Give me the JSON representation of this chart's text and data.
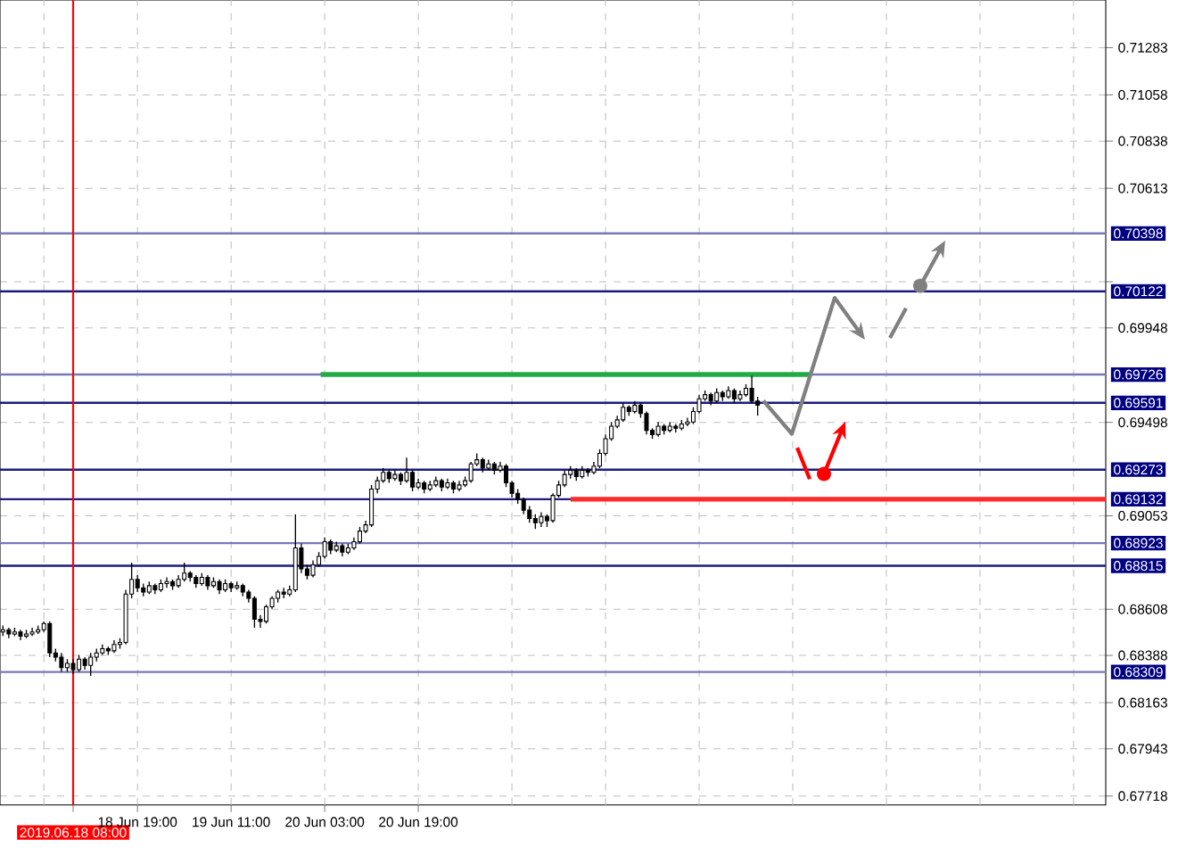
{
  "chart_data": {
    "type": "candlestick",
    "categories": [
      null,
      null,
      null,
      null,
      null,
      null,
      null,
      null,
      null,
      null,
      null,
      null,
      "2019.06.18 08:00",
      null,
      null,
      null,
      null,
      null,
      null,
      null,
      null,
      null,
      null,
      "18 Jun 19:00",
      null,
      null,
      null,
      null,
      null,
      null,
      null,
      null,
      null,
      null,
      null,
      null,
      null,
      null,
      null,
      "19 Jun 11:00",
      null,
      null,
      null,
      null,
      null,
      null,
      null,
      null,
      null,
      null,
      null,
      null,
      null,
      null,
      null,
      "20 Jun 03:00",
      null,
      null,
      null,
      null,
      null,
      null,
      null,
      null,
      null,
      null,
      null,
      null,
      null,
      null,
      null,
      "20 Jun 19:00",
      null,
      null,
      null,
      null,
      null,
      null,
      null,
      null,
      null,
      null,
      null,
      null,
      null,
      null,
      null,
      null,
      null,
      null,
      null,
      null,
      null,
      null,
      null,
      null,
      null,
      null,
      null,
      null,
      null,
      null,
      null,
      null,
      null,
      null,
      null,
      null,
      null,
      null,
      null,
      null,
      null,
      null,
      null,
      null,
      null,
      null,
      null,
      null,
      null,
      null,
      null,
      null,
      null,
      null,
      null,
      null,
      null,
      null,
      null,
      null,
      null,
      null,
      null,
      null,
      null,
      null,
      null,
      null,
      null,
      null,
      null,
      null,
      null,
      null,
      null,
      null,
      null,
      null,
      null,
      null,
      null,
      null,
      null,
      null,
      null,
      null,
      null,
      null,
      null,
      null,
      null,
      null,
      null,
      null,
      null,
      null,
      null,
      null,
      null,
      null,
      null,
      null,
      null,
      null,
      null,
      null,
      null,
      null,
      null,
      null,
      null,
      null,
      null,
      null,
      null,
      null,
      null
    ],
    "ohlc": [
      [
        0.685,
        0.6853,
        0.6848,
        0.6851
      ],
      [
        0.6851,
        0.6852,
        0.6847,
        0.6849
      ],
      [
        0.6849,
        0.6852,
        0.6848,
        0.685
      ],
      [
        0.685,
        0.6851,
        0.6846,
        0.6848
      ],
      [
        0.6848,
        0.6851,
        0.6847,
        0.6849
      ],
      [
        0.6849,
        0.6852,
        0.6848,
        0.685
      ],
      [
        0.685,
        0.6853,
        0.6849,
        0.6851
      ],
      [
        0.6851,
        0.6855,
        0.685,
        0.6854
      ],
      [
        0.6854,
        0.6855,
        0.6838,
        0.684
      ],
      [
        0.684,
        0.6842,
        0.6836,
        0.6838
      ],
      [
        0.6838,
        0.684,
        0.6831,
        0.6833
      ],
      [
        0.6833,
        0.6837,
        0.6831,
        0.6835
      ],
      [
        0.6835,
        0.6837,
        0.683,
        0.6832
      ],
      [
        0.6832,
        0.6839,
        0.6831,
        0.6837
      ],
      [
        0.6837,
        0.6838,
        0.6832,
        0.6834
      ],
      [
        0.6834,
        0.684,
        0.6829,
        0.6838
      ],
      [
        0.6838,
        0.6842,
        0.6836,
        0.684
      ],
      [
        0.684,
        0.6844,
        0.6839,
        0.6842
      ],
      [
        0.6842,
        0.6843,
        0.6839,
        0.6841
      ],
      [
        0.6841,
        0.6846,
        0.684,
        0.6844
      ],
      [
        0.6844,
        0.6847,
        0.6842,
        0.6845
      ],
      [
        0.6845,
        0.687,
        0.6844,
        0.6868
      ],
      [
        0.6868,
        0.6883,
        0.6866,
        0.6875
      ],
      [
        0.6875,
        0.6877,
        0.6869,
        0.6871
      ],
      [
        0.6871,
        0.6873,
        0.6867,
        0.6869
      ],
      [
        0.6869,
        0.6874,
        0.6868,
        0.6872
      ],
      [
        0.6872,
        0.6873,
        0.6868,
        0.687
      ],
      [
        0.687,
        0.6875,
        0.6869,
        0.6873
      ],
      [
        0.6873,
        0.6876,
        0.6871,
        0.6874
      ],
      [
        0.6874,
        0.6875,
        0.687,
        0.6872
      ],
      [
        0.6872,
        0.6877,
        0.6871,
        0.6875
      ],
      [
        0.6875,
        0.6883,
        0.6874,
        0.6878
      ],
      [
        0.6878,
        0.6879,
        0.6874,
        0.6876
      ],
      [
        0.6876,
        0.6877,
        0.6871,
        0.6873
      ],
      [
        0.6873,
        0.6878,
        0.6872,
        0.6876
      ],
      [
        0.6876,
        0.6877,
        0.687,
        0.6872
      ],
      [
        0.6872,
        0.6876,
        0.6871,
        0.6874
      ],
      [
        0.6874,
        0.6875,
        0.6868,
        0.687
      ],
      [
        0.687,
        0.6875,
        0.6869,
        0.6873
      ],
      [
        0.6873,
        0.6874,
        0.6869,
        0.6871
      ],
      [
        0.6871,
        0.6874,
        0.687,
        0.6872
      ],
      [
        0.6872,
        0.6873,
        0.6867,
        0.6869
      ],
      [
        0.6869,
        0.687,
        0.6864,
        0.6866
      ],
      [
        0.6866,
        0.6867,
        0.6852,
        0.6856
      ],
      [
        0.6856,
        0.6858,
        0.6852,
        0.6855
      ],
      [
        0.6855,
        0.6863,
        0.6854,
        0.6862
      ],
      [
        0.6862,
        0.6867,
        0.6861,
        0.6866
      ],
      [
        0.6866,
        0.687,
        0.6864,
        0.6869
      ],
      [
        0.6869,
        0.6871,
        0.6866,
        0.6868
      ],
      [
        0.6868,
        0.6872,
        0.6867,
        0.687
      ],
      [
        0.687,
        0.6906,
        0.6869,
        0.689
      ],
      [
        0.689,
        0.6892,
        0.6878,
        0.688
      ],
      [
        0.688,
        0.6882,
        0.6875,
        0.6877
      ],
      [
        0.6877,
        0.6884,
        0.6876,
        0.6882
      ],
      [
        0.6882,
        0.6888,
        0.6881,
        0.6886
      ],
      [
        0.6886,
        0.6895,
        0.6885,
        0.6893
      ],
      [
        0.6893,
        0.6894,
        0.6887,
        0.6889
      ],
      [
        0.6889,
        0.6893,
        0.6888,
        0.6891
      ],
      [
        0.6891,
        0.6892,
        0.6886,
        0.6888
      ],
      [
        0.6888,
        0.6892,
        0.6887,
        0.689
      ],
      [
        0.689,
        0.6895,
        0.6889,
        0.6893
      ],
      [
        0.6893,
        0.69,
        0.6892,
        0.6898
      ],
      [
        0.6898,
        0.6903,
        0.6897,
        0.6901
      ],
      [
        0.6901,
        0.692,
        0.69,
        0.6918
      ],
      [
        0.6918,
        0.6924,
        0.6916,
        0.6922
      ],
      [
        0.6922,
        0.6928,
        0.6921,
        0.6926
      ],
      [
        0.6926,
        0.6927,
        0.6921,
        0.6923
      ],
      [
        0.6923,
        0.6927,
        0.6922,
        0.6925
      ],
      [
        0.6925,
        0.6926,
        0.692,
        0.6922
      ],
      [
        0.6922,
        0.6933,
        0.6921,
        0.6926
      ],
      [
        0.6926,
        0.6927,
        0.6917,
        0.6919
      ],
      [
        0.6919,
        0.6923,
        0.6918,
        0.6921
      ],
      [
        0.6921,
        0.6922,
        0.6916,
        0.6918
      ],
      [
        0.6918,
        0.6922,
        0.6917,
        0.692
      ],
      [
        0.692,
        0.6924,
        0.6919,
        0.6922
      ],
      [
        0.6922,
        0.6923,
        0.6917,
        0.6919
      ],
      [
        0.6919,
        0.6923,
        0.6918,
        0.6921
      ],
      [
        0.6921,
        0.6922,
        0.6916,
        0.6918
      ],
      [
        0.6918,
        0.6922,
        0.6917,
        0.692
      ],
      [
        0.692,
        0.6924,
        0.6919,
        0.6922
      ],
      [
        0.6922,
        0.6931,
        0.6921,
        0.693
      ],
      [
        0.693,
        0.6935,
        0.6929,
        0.6932
      ],
      [
        0.6932,
        0.6933,
        0.6926,
        0.6928
      ],
      [
        0.6928,
        0.6932,
        0.6927,
        0.693
      ],
      [
        0.693,
        0.6931,
        0.6925,
        0.6927
      ],
      [
        0.6927,
        0.6931,
        0.6926,
        0.6929
      ],
      [
        0.6929,
        0.693,
        0.6919,
        0.6921
      ],
      [
        0.6921,
        0.6922,
        0.6914,
        0.6916
      ],
      [
        0.6916,
        0.6918,
        0.6911,
        0.6913
      ],
      [
        0.6913,
        0.6914,
        0.6906,
        0.6908
      ],
      [
        0.6908,
        0.691,
        0.6902,
        0.6904
      ],
      [
        0.6904,
        0.6906,
        0.6899,
        0.6902
      ],
      [
        0.6902,
        0.6907,
        0.69,
        0.6905
      ],
      [
        0.6905,
        0.6906,
        0.69,
        0.6903
      ],
      [
        0.6903,
        0.6916,
        0.6902,
        0.6915
      ],
      [
        0.6915,
        0.6922,
        0.6914,
        0.692
      ],
      [
        0.692,
        0.6927,
        0.6919,
        0.6925
      ],
      [
        0.6925,
        0.6929,
        0.6923,
        0.6927
      ],
      [
        0.6927,
        0.6928,
        0.6922,
        0.6924
      ],
      [
        0.6924,
        0.6929,
        0.6923,
        0.6927
      ],
      [
        0.6927,
        0.6928,
        0.6924,
        0.6926
      ],
      [
        0.6926,
        0.6931,
        0.6925,
        0.6929
      ],
      [
        0.6929,
        0.6937,
        0.6928,
        0.6935
      ],
      [
        0.6935,
        0.6944,
        0.6934,
        0.6942
      ],
      [
        0.6942,
        0.695,
        0.6941,
        0.6948
      ],
      [
        0.6948,
        0.6953,
        0.6947,
        0.6951
      ],
      [
        0.6951,
        0.6959,
        0.695,
        0.6957
      ],
      [
        0.6957,
        0.6958,
        0.6953,
        0.6955
      ],
      [
        0.6955,
        0.696,
        0.6954,
        0.6958
      ],
      [
        0.6958,
        0.6959,
        0.6952,
        0.6954
      ],
      [
        0.6954,
        0.6955,
        0.6944,
        0.6946
      ],
      [
        0.6946,
        0.6947,
        0.6942,
        0.6944
      ],
      [
        0.6944,
        0.695,
        0.6943,
        0.6948
      ],
      [
        0.6948,
        0.6949,
        0.6944,
        0.6946
      ],
      [
        0.6946,
        0.695,
        0.6945,
        0.6948
      ],
      [
        0.6948,
        0.6949,
        0.6945,
        0.6947
      ],
      [
        0.6947,
        0.6951,
        0.6946,
        0.6949
      ],
      [
        0.6949,
        0.6952,
        0.6948,
        0.695
      ],
      [
        0.695,
        0.6957,
        0.6949,
        0.6955
      ],
      [
        0.6955,
        0.6963,
        0.6954,
        0.6961
      ],
      [
        0.6961,
        0.6965,
        0.696,
        0.6963
      ],
      [
        0.6963,
        0.6964,
        0.6958,
        0.696
      ],
      [
        0.696,
        0.6966,
        0.6959,
        0.6964
      ],
      [
        0.6964,
        0.6965,
        0.696,
        0.6962
      ],
      [
        0.6962,
        0.6967,
        0.6961,
        0.6965
      ],
      [
        0.6965,
        0.6966,
        0.6959,
        0.6961
      ],
      [
        0.6961,
        0.6965,
        0.696,
        0.6963
      ],
      [
        0.6963,
        0.6968,
        0.6962,
        0.6966
      ],
      [
        0.6966,
        0.6972,
        0.6959,
        0.696
      ],
      [
        0.696,
        0.6962,
        0.6953,
        0.6958
      ],
      null,
      null,
      null,
      null,
      null,
      null,
      null,
      null,
      null,
      null,
      null,
      null,
      null,
      null,
      null,
      null,
      null,
      null,
      null,
      null,
      null,
      null,
      null,
      null,
      null,
      null,
      null,
      null,
      null,
      null,
      null,
      null,
      null,
      null,
      null,
      null,
      null,
      null,
      null,
      null,
      null,
      null,
      null,
      null,
      null,
      null,
      null,
      null,
      null,
      null,
      null,
      null,
      null,
      null,
      null,
      null,
      null,
      null,
      null
    ],
    "color": "#000000",
    "ylim": [
      0.67676,
      0.7151
    ],
    "yticks": [
      {
        "value": 0.71283,
        "label": "0.71283"
      },
      {
        "value": 0.71058,
        "label": "0.71058"
      },
      {
        "value": 0.70838,
        "label": "0.70838"
      },
      {
        "value": 0.70613,
        "label": "0.70613"
      },
      {
        "value": 0.70168,
        "label": null
      },
      {
        "value": 0.69948,
        "label": "0.69948"
      },
      {
        "value": 0.69498,
        "label": "0.69498"
      },
      {
        "value": 0.69053,
        "label": "0.69053"
      },
      {
        "value": 0.68608,
        "label": "0.68608"
      },
      {
        "value": 0.68388,
        "label": "0.68388"
      },
      {
        "value": 0.68163,
        "label": "0.68163"
      },
      {
        "value": 0.67943,
        "label": "0.67943"
      },
      {
        "value": 0.67718,
        "label": "0.67718"
      }
    ],
    "grid": true,
    "ref_lines": [
      {
        "axis": "y",
        "value": 0.70398,
        "label": "0.70398",
        "color": "#7878b8"
      },
      {
        "axis": "y",
        "value": 0.70122,
        "label": "0.70122",
        "color": "#1c1c80"
      },
      {
        "axis": "y",
        "value": 0.69726,
        "label": "0.69726",
        "color": "#7878b8"
      },
      {
        "axis": "y",
        "value": 0.69591,
        "label": "0.69591",
        "color": "#1c1c80"
      },
      {
        "axis": "y",
        "value": 0.69273,
        "label": "0.69273",
        "color": "#1c1c80"
      },
      {
        "axis": "y",
        "value": 0.69132,
        "label": "0.69132",
        "color": "#1c1c80"
      },
      {
        "axis": "y",
        "value": 0.68923,
        "label": "0.68923",
        "color": "#7878b8"
      },
      {
        "axis": "y",
        "value": 0.68815,
        "label": "0.68815",
        "color": "#1c1c80"
      },
      {
        "axis": "y",
        "value": 0.68309,
        "label": "0.68309",
        "color": "#7878b8"
      },
      {
        "axis": "y",
        "value": 0.69726,
        "color": "#22aa44"
      },
      {
        "axis": "y",
        "value": 0.69132,
        "color": "#ff2a2a"
      },
      {
        "axis": "x",
        "value": "2019.06.18 08:00",
        "color": "#ff0000"
      }
    ]
  }
}
